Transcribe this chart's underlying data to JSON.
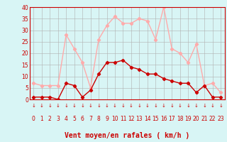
{
  "hours": [
    0,
    1,
    2,
    3,
    4,
    5,
    6,
    7,
    8,
    9,
    10,
    11,
    12,
    13,
    14,
    15,
    16,
    17,
    18,
    19,
    20,
    21,
    22,
    23
  ],
  "wind_avg": [
    1,
    1,
    1,
    0,
    7,
    6,
    1,
    4,
    11,
    16,
    16,
    17,
    14,
    13,
    11,
    11,
    9,
    8,
    7,
    7,
    3,
    6,
    1,
    1
  ],
  "wind_gust": [
    7,
    6,
    6,
    6,
    28,
    22,
    16,
    5,
    26,
    32,
    36,
    33,
    33,
    35,
    34,
    26,
    40,
    22,
    20,
    16,
    24,
    6,
    7,
    3
  ],
  "bg_color": "#d8f5f5",
  "grid_color": "#b0b0b0",
  "avg_color": "#cc0000",
  "gust_color": "#ffaaaa",
  "xlabel": "Vent moyen/en rafales ( km/h )",
  "xlabel_color": "#cc0000",
  "yticks": [
    0,
    5,
    10,
    15,
    20,
    25,
    30,
    35,
    40
  ],
  "ylim": [
    0,
    40
  ],
  "xlim": [
    -0.5,
    23.5
  ],
  "tick_fontsize": 5.5,
  "label_fontsize": 7
}
